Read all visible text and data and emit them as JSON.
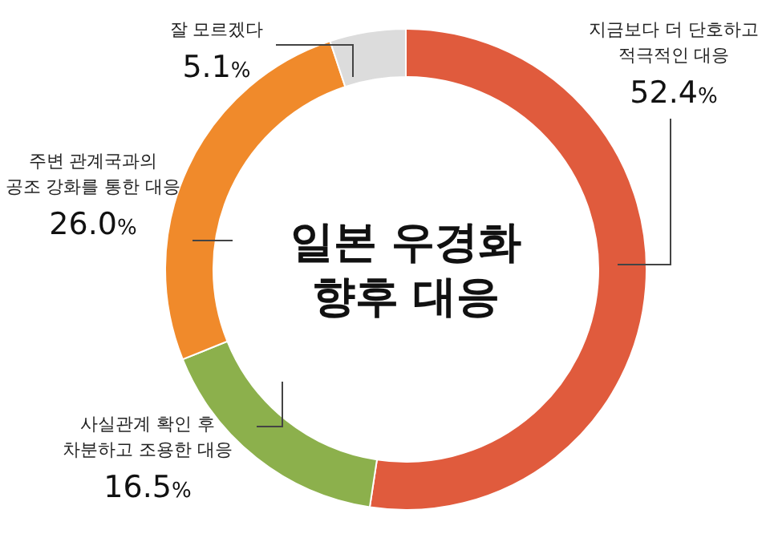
{
  "chart_data": {
    "type": "donut",
    "title": "일본 우경화\n향후 대응",
    "categories": [
      "지금보다 더 단호하고\n적극적인 대응",
      "사실관계 확인 후\n차분하고 조용한 대응",
      "주변 관계국과의\n공조 강화를 통한 대응",
      "잘 모르겠다"
    ],
    "values": [
      52.4,
      16.5,
      26.0,
      5.1
    ],
    "colors": [
      "#e05b3d",
      "#8cb04c",
      "#f08a2b",
      "#dcdcdc"
    ],
    "value_labels": [
      "52.4%",
      "16.5%",
      "26.0%",
      "5.1%"
    ]
  }
}
